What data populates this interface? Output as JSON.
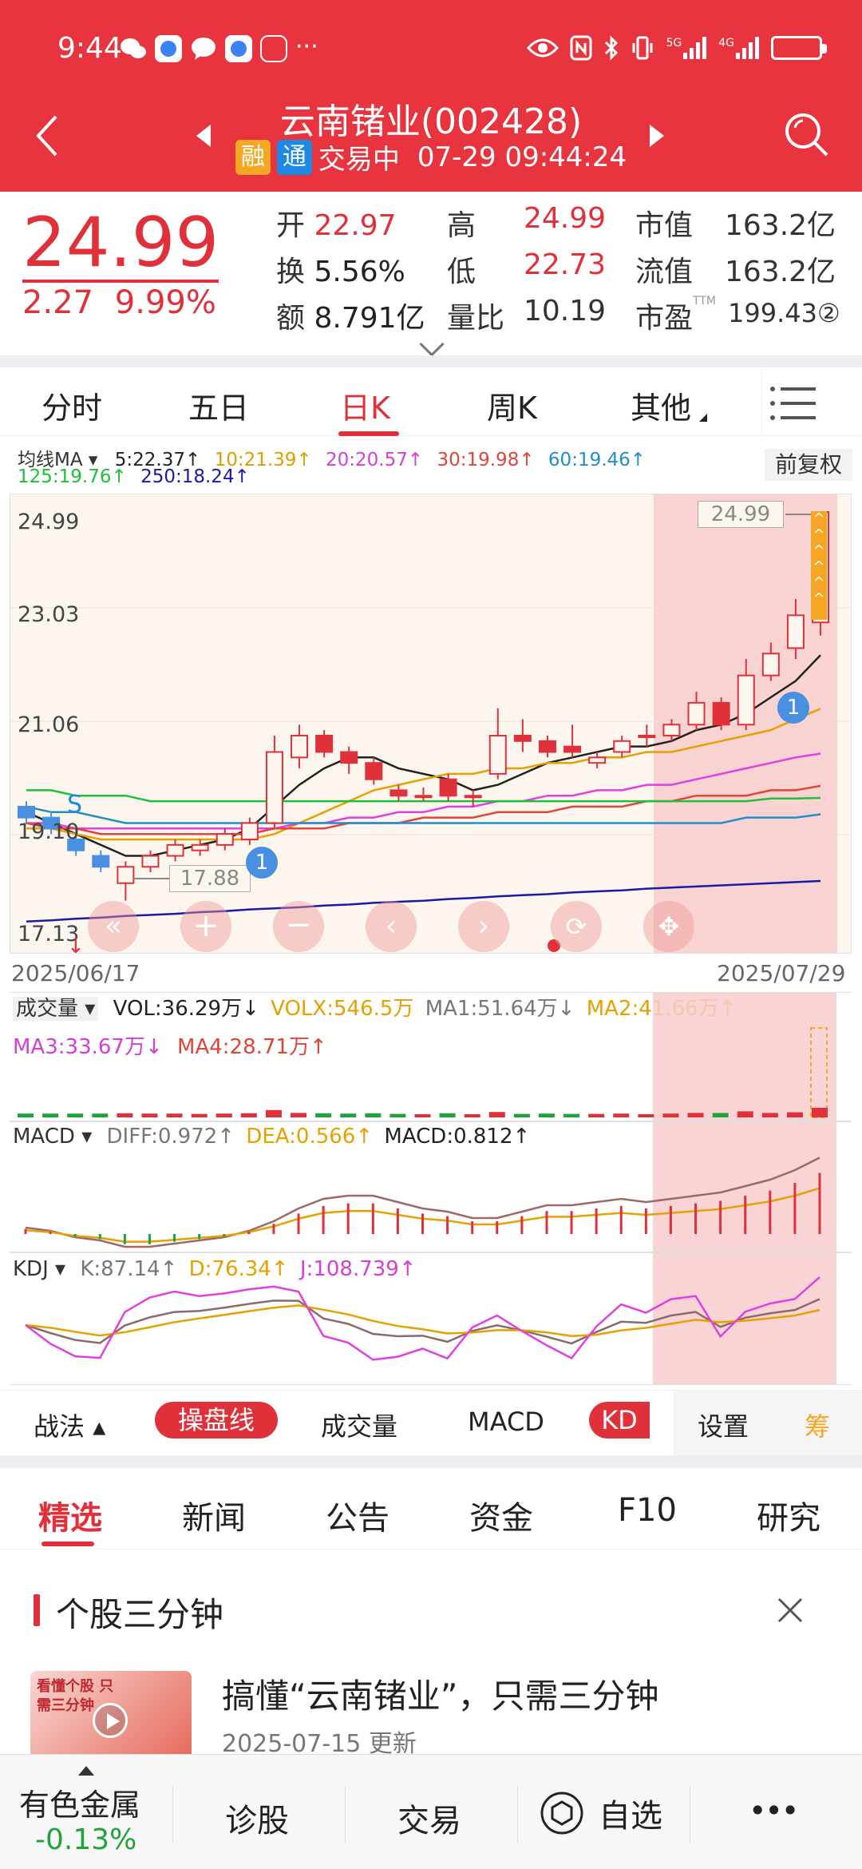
{
  "status_bar": {
    "time": "9:44",
    "net1": "5G",
    "net2": "4G"
  },
  "header": {
    "title": "云南锗业(002428)",
    "tag_rong": "融",
    "tag_tong": "通",
    "trading_status": "交易中",
    "datetime": "07-29 09:44:24"
  },
  "quote": {
    "price": "24.99",
    "change": "2.27",
    "change_pct": "9.99%",
    "open_label": "开",
    "open": "22.97",
    "high_label": "高",
    "high": "24.99",
    "mktcap_label": "市值",
    "mktcap": "163.2亿",
    "turnover_label": "换",
    "turnover": "5.56%",
    "low_label": "低",
    "low": "22.73",
    "float_label": "流值",
    "float_cap": "163.2亿",
    "amount_label": "额",
    "amount": "8.791亿",
    "volratio_label": "量比",
    "volratio": "10.19",
    "pe_label": "市盈",
    "pe_sup": "TTM",
    "pe": "199.43②"
  },
  "period_tabs": [
    "分时",
    "五日",
    "日K",
    "周K",
    "其他"
  ],
  "active_period": "日K",
  "ma": {
    "label": "均线MA",
    "ma5": "5:22.37↑",
    "ma10": "10:21.39↑",
    "ma20": "20:20.57↑",
    "ma30": "30:19.98↑",
    "ma60": "60:19.46↑",
    "ma125": "125:19.76↑",
    "ma250": "250:18.24↑",
    "adjust": "前复权"
  },
  "colors": {
    "ma5": "#222222",
    "ma10": "#e6a000",
    "ma20": "#e040e0",
    "ma30": "#e0453a",
    "ma60": "#1e8fc8",
    "ma125": "#1fbf3a",
    "ma250": "#1a1aa8",
    "up": "#e0303a",
    "down": "#1fa33a"
  },
  "chart": {
    "y_labels": [
      "24.99",
      "23.03",
      "21.06",
      "19.10",
      "17.13"
    ],
    "marker_high": "24.99",
    "marker_low": "17.88",
    "s_label": "S",
    "badge": "1",
    "date_start": "2025/06/17",
    "date_end": "2025/07/29"
  },
  "chart_data": {
    "type": "candlestick",
    "x_range": [
      "2025/06/17",
      "2025/07/29"
    ],
    "ylim": [
      17.13,
      24.99
    ],
    "y_ticks": [
      24.99,
      23.03,
      21.06,
      19.1,
      17.13
    ],
    "candles": [
      {
        "o": 19.6,
        "c": 19.4,
        "h": 19.7,
        "l": 19.3
      },
      {
        "o": 19.4,
        "c": 19.2,
        "h": 19.5,
        "l": 19.1
      },
      {
        "o": 19.0,
        "c": 18.8,
        "h": 19.2,
        "l": 18.7
      },
      {
        "o": 18.7,
        "c": 18.5,
        "h": 18.8,
        "l": 18.4
      },
      {
        "o": 18.2,
        "c": 18.5,
        "h": 18.6,
        "l": 17.88
      },
      {
        "o": 18.5,
        "c": 18.7,
        "h": 18.8,
        "l": 18.4
      },
      {
        "o": 18.7,
        "c": 18.9,
        "h": 19.0,
        "l": 18.6
      },
      {
        "o": 18.8,
        "c": 18.9,
        "h": 19.0,
        "l": 18.7
      },
      {
        "o": 18.9,
        "c": 19.1,
        "h": 19.2,
        "l": 18.8
      },
      {
        "o": 19.0,
        "c": 19.3,
        "h": 19.4,
        "l": 18.9
      },
      {
        "o": 19.3,
        "c": 20.6,
        "h": 20.9,
        "l": 19.2
      },
      {
        "o": 20.5,
        "c": 20.9,
        "h": 21.1,
        "l": 20.3
      },
      {
        "o": 20.9,
        "c": 20.6,
        "h": 21.0,
        "l": 20.5
      },
      {
        "o": 20.6,
        "c": 20.4,
        "h": 20.7,
        "l": 20.2
      },
      {
        "o": 20.4,
        "c": 20.1,
        "h": 20.5,
        "l": 20.0
      },
      {
        "o": 19.9,
        "c": 19.8,
        "h": 20.0,
        "l": 19.7
      },
      {
        "o": 19.8,
        "c": 19.8,
        "h": 19.95,
        "l": 19.7
      },
      {
        "o": 20.1,
        "c": 19.8,
        "h": 20.2,
        "l": 19.7
      },
      {
        "o": 19.8,
        "c": 19.8,
        "h": 19.9,
        "l": 19.6
      },
      {
        "o": 20.2,
        "c": 20.9,
        "h": 21.4,
        "l": 20.1
      },
      {
        "o": 20.9,
        "c": 20.8,
        "h": 21.2,
        "l": 20.6
      },
      {
        "o": 20.8,
        "c": 20.6,
        "h": 20.9,
        "l": 20.5
      },
      {
        "o": 20.7,
        "c": 20.6,
        "h": 21.1,
        "l": 20.5
      },
      {
        "o": 20.4,
        "c": 20.5,
        "h": 20.6,
        "l": 20.3
      },
      {
        "o": 20.6,
        "c": 20.8,
        "h": 20.9,
        "l": 20.5
      },
      {
        "o": 20.9,
        "c": 20.9,
        "h": 21.1,
        "l": 20.7
      },
      {
        "o": 20.9,
        "c": 21.1,
        "h": 21.2,
        "l": 20.8
      },
      {
        "o": 21.1,
        "c": 21.5,
        "h": 21.7,
        "l": 21.0
      },
      {
        "o": 21.5,
        "c": 21.1,
        "h": 21.6,
        "l": 21.0
      },
      {
        "o": 21.1,
        "c": 22.0,
        "h": 22.3,
        "l": 21.0
      },
      {
        "o": 22.0,
        "c": 22.4,
        "h": 22.6,
        "l": 21.9
      },
      {
        "o": 22.5,
        "c": 23.1,
        "h": 23.4,
        "l": 22.3
      },
      {
        "o": 22.97,
        "c": 24.99,
        "h": 24.99,
        "l": 22.73
      }
    ],
    "ma_series": [
      {
        "name": "MA5",
        "values": [
          19.5,
          19.3,
          19.1,
          18.9,
          18.7,
          18.7,
          18.8,
          18.9,
          19.0,
          19.2,
          19.6,
          20.0,
          20.3,
          20.5,
          20.5,
          20.3,
          20.2,
          20.1,
          19.9,
          20.0,
          20.2,
          20.4,
          20.5,
          20.6,
          20.7,
          20.7,
          20.8,
          21.0,
          21.1,
          21.3,
          21.6,
          21.9,
          22.37
        ]
      },
      {
        "name": "MA10",
        "values": [
          19.2,
          19.2,
          19.1,
          19.0,
          19.0,
          19.0,
          19.0,
          19.0,
          19.0,
          19.0,
          19.1,
          19.3,
          19.5,
          19.7,
          19.9,
          20.0,
          20.1,
          20.2,
          20.2,
          20.3,
          20.3,
          20.4,
          20.4,
          20.5,
          20.5,
          20.6,
          20.6,
          20.7,
          20.8,
          20.9,
          21.0,
          21.2,
          21.39
        ]
      },
      {
        "name": "MA20",
        "values": [
          19.3,
          19.3,
          19.2,
          19.2,
          19.2,
          19.2,
          19.2,
          19.2,
          19.2,
          19.2,
          19.2,
          19.3,
          19.3,
          19.4,
          19.4,
          19.5,
          19.5,
          19.6,
          19.6,
          19.7,
          19.7,
          19.8,
          19.8,
          19.9,
          19.9,
          20.0,
          20.0,
          20.1,
          20.2,
          20.3,
          20.4,
          20.5,
          20.57
        ]
      },
      {
        "name": "MA30",
        "values": [
          19.3,
          19.2,
          19.2,
          19.1,
          19.1,
          19.1,
          19.1,
          19.1,
          19.1,
          19.1,
          19.2,
          19.2,
          19.2,
          19.3,
          19.3,
          19.3,
          19.4,
          19.4,
          19.4,
          19.5,
          19.5,
          19.5,
          19.6,
          19.6,
          19.6,
          19.7,
          19.7,
          19.8,
          19.8,
          19.8,
          19.9,
          19.9,
          19.98
        ]
      },
      {
        "name": "MA60",
        "values": [
          19.6,
          19.5,
          19.5,
          19.4,
          19.3,
          19.3,
          19.3,
          19.3,
          19.3,
          19.3,
          19.3,
          19.3,
          19.3,
          19.3,
          19.3,
          19.3,
          19.3,
          19.3,
          19.3,
          19.3,
          19.3,
          19.3,
          19.3,
          19.3,
          19.3,
          19.3,
          19.3,
          19.3,
          19.3,
          19.4,
          19.4,
          19.4,
          19.46
        ]
      },
      {
        "name": "MA125",
        "values": [
          19.9,
          19.9,
          19.8,
          19.8,
          19.8,
          19.7,
          19.7,
          19.7,
          19.7,
          19.7,
          19.7,
          19.7,
          19.7,
          19.7,
          19.7,
          19.7,
          19.7,
          19.7,
          19.7,
          19.7,
          19.7,
          19.7,
          19.7,
          19.7,
          19.7,
          19.7,
          19.7,
          19.7,
          19.7,
          19.7,
          19.75,
          19.75,
          19.76
        ]
      },
      {
        "name": "MA250",
        "values": [
          17.5,
          17.52,
          17.55,
          17.57,
          17.6,
          17.62,
          17.64,
          17.67,
          17.69,
          17.72,
          17.74,
          17.76,
          17.79,
          17.81,
          17.84,
          17.86,
          17.88,
          17.91,
          17.93,
          17.96,
          17.98,
          18.0,
          18.03,
          18.05,
          18.07,
          18.1,
          18.12,
          18.14,
          18.16,
          18.18,
          18.2,
          18.22,
          18.24
        ]
      }
    ]
  },
  "volume": {
    "label": "成交量",
    "vol": "VOL:36.29万↓",
    "volx": "VOLX:546.5万",
    "ma1": "MA1:51.64万↓",
    "ma2": "MA2:41.66万↑",
    "ma3": "MA3:33.67万↓",
    "ma4": "MA4:28.71万↑"
  },
  "macd": {
    "label": "MACD",
    "diff": "DIFF:0.972↑",
    "dea": "DEA:0.566↑",
    "macd": "MACD:0.812↑"
  },
  "kdj": {
    "label": "KDJ",
    "k": "K:87.14↑",
    "d": "D:76.34↑",
    "j": "J:108.739↑"
  },
  "indicator_bar": {
    "zhanfa": "战法",
    "caopan": "操盘线",
    "chengjiaoliang": "成交量",
    "macd": "MACD",
    "kd": "KD",
    "settings": "设置",
    "chou": "筹"
  },
  "news_tabs": [
    "精选",
    "新闻",
    "公告",
    "资金",
    "F10",
    "研究"
  ],
  "section": {
    "title": "个股三分钟",
    "article_title": "搞懂“云南锗业”，只需三分钟",
    "article_date": "2025-07-15 更新",
    "thumb_text": "看懂个股 只需三分钟"
  },
  "bottom_nav": {
    "sector": "有色金属",
    "sector_chg": "-0.13%",
    "diagnose": "诊股",
    "trade": "交易",
    "watch": "自选",
    "more": "•••"
  }
}
